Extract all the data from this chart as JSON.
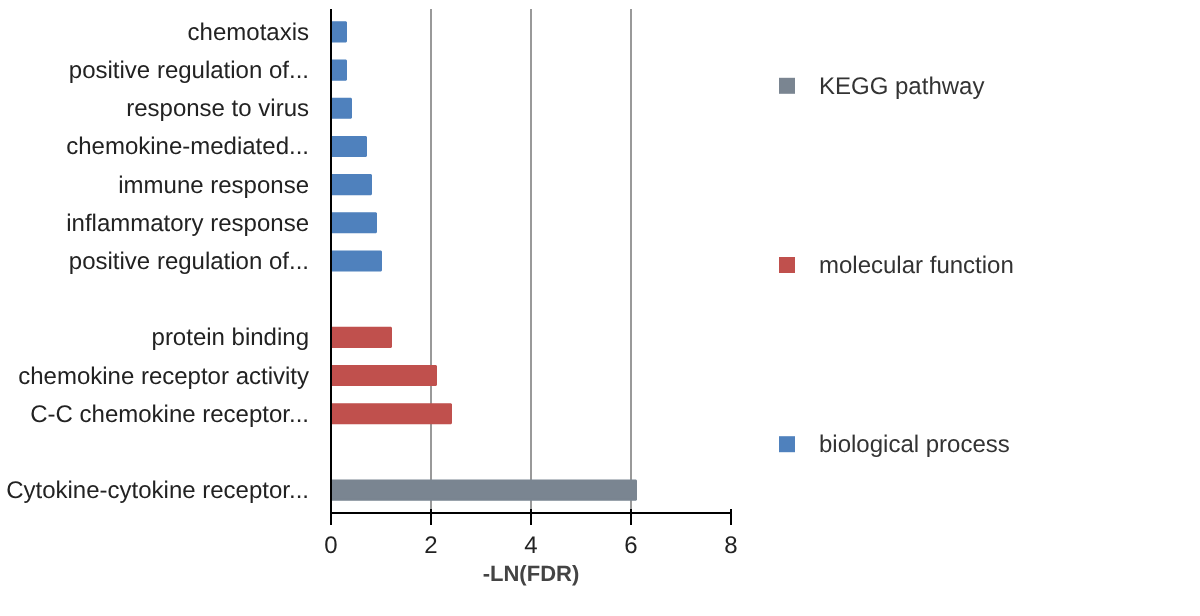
{
  "chart_data": {
    "type": "bar",
    "orientation": "horizontal",
    "xlabel": "-LN(FDR)",
    "categories": [
      "chemotaxis",
      "positive regulation of...",
      "response to virus",
      "chemokine-mediated...",
      "immune response",
      "inflammatory response",
      "positive regulation of...",
      null,
      "protein binding",
      "chemokine receptor activity",
      "C-C chemokine receptor...",
      null,
      "Cytokine-cytokine receptor..."
    ],
    "series": [
      {
        "name": "KEGG pathway",
        "color": "#7a8591",
        "values": [
          null,
          null,
          null,
          null,
          null,
          null,
          null,
          null,
          null,
          null,
          null,
          null,
          6.1
        ]
      },
      {
        "name": "molecular function",
        "color": "#c0504d",
        "values": [
          null,
          null,
          null,
          null,
          null,
          null,
          null,
          null,
          1.2,
          2.1,
          2.4,
          null,
          null
        ]
      },
      {
        "name": "biological process",
        "color": "#4f81bd",
        "values": [
          0.3,
          0.3,
          0.4,
          0.7,
          0.8,
          0.9,
          1.0,
          null,
          null,
          null,
          null,
          null,
          null
        ]
      }
    ],
    "xlim": [
      0,
      8
    ],
    "xticks": [
      0,
      2,
      4,
      6,
      8
    ],
    "grid": "x",
    "legend": "right"
  }
}
